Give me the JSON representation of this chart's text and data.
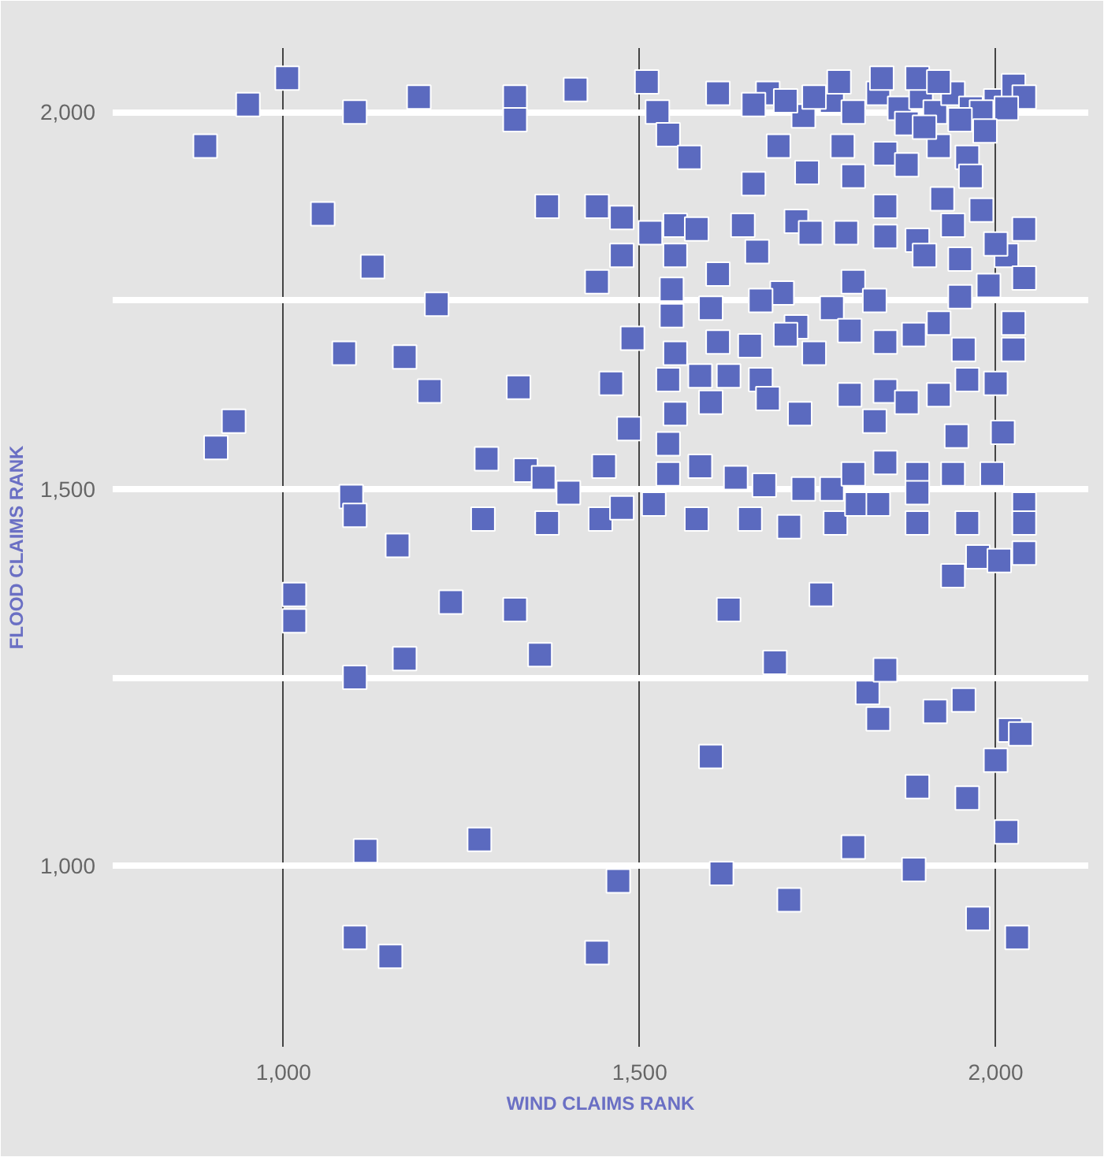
{
  "chart_data": {
    "type": "scatter",
    "xlabel": "WIND CLAIMS RANK",
    "ylabel": "FLOOD CLAIMS RANK",
    "xlim": [
      760,
      2130
    ],
    "ylim": [
      760,
      2085
    ],
    "xticks": [
      {
        "value": 1000,
        "label": "1,000"
      },
      {
        "value": 1500,
        "label": "1,500"
      },
      {
        "value": 2000,
        "label": "2,000"
      }
    ],
    "yticks": [
      {
        "value": 1000,
        "label": "1,000"
      },
      {
        "value": 1250,
        "label": null
      },
      {
        "value": 1500,
        "label": "1,500"
      },
      {
        "value": 1750,
        "label": null
      },
      {
        "value": 2000,
        "label": "2,000"
      }
    ],
    "grid": true,
    "marker": "square",
    "series": [
      {
        "color": "#5b6abf",
        "x": [
          890,
          950,
          1005,
          1100,
          1190,
          1325,
          1325,
          1410,
          1510,
          1525,
          1540,
          1610,
          1680,
          1730,
          1770,
          1800,
          1835,
          1865,
          1895,
          1915,
          1940,
          1965,
          2000,
          2025,
          2040,
          1840,
          1890,
          1660,
          1705,
          1745,
          1780,
          1875,
          1980,
          2015,
          1950,
          1920,
          1695,
          1785,
          1845,
          1920,
          1960,
          1985,
          1900,
          1875,
          1800,
          1735,
          1660,
          1570,
          1965,
          1055,
          1370,
          1440,
          1475,
          1515,
          1550,
          1580,
          1645,
          1720,
          1790,
          1845,
          1890,
          1940,
          1980,
          2015,
          2040,
          1665,
          1550,
          1475,
          1125,
          1845,
          1925,
          2000,
          1950,
          1900,
          1740,
          1440,
          1545,
          1215,
          1610,
          1700,
          1800,
          1830,
          1950,
          1990,
          2040,
          1670,
          1545,
          1600,
          1720,
          1770,
          1920,
          2025,
          1085,
          1170,
          1490,
          1550,
          1610,
          1655,
          1705,
          1745,
          1795,
          1845,
          1885,
          1955,
          2025,
          1205,
          1330,
          1460,
          1540,
          1585,
          1625,
          1670,
          1725,
          1795,
          1845,
          1875,
          1920,
          1960,
          2000,
          930,
          1485,
          1550,
          1600,
          1680,
          1830,
          1945,
          2010,
          905,
          1285,
          1095,
          1340,
          1365,
          1400,
          1450,
          1540,
          1540,
          1585,
          1635,
          1675,
          1730,
          1770,
          1800,
          1845,
          1890,
          1940,
          1995,
          2040,
          1100,
          1280,
          1370,
          1445,
          1520,
          1475,
          1580,
          1655,
          1710,
          1775,
          1805,
          1835,
          1890,
          1890,
          1960,
          2040,
          1160,
          1015,
          1015,
          1235,
          1325,
          1360,
          1625,
          1755,
          1940,
          1975,
          2040,
          2005,
          1100,
          1170,
          1690,
          1820,
          1845,
          1835,
          1915,
          1955,
          2020,
          2035,
          1600,
          2000,
          1890,
          1960,
          2015,
          1275,
          1115,
          1800,
          1470,
          1615,
          1710,
          1885,
          1975,
          1100,
          1150,
          1440,
          2030
        ],
        "values": [
          1955,
          2010,
          2045,
          2000,
          2020,
          2020,
          1990,
          2030,
          2040,
          2000,
          1970,
          2025,
          2025,
          1995,
          2015,
          2000,
          2025,
          2005,
          2020,
          2000,
          2025,
          2005,
          2015,
          2035,
          2020,
          2045,
          2045,
          2010,
          2015,
          2020,
          2040,
          1985,
          2000,
          2005,
          1990,
          2040,
          1955,
          1955,
          1945,
          1955,
          1940,
          1975,
          1980,
          1930,
          1915,
          1920,
          1905,
          1940,
          1915,
          1865,
          1875,
          1875,
          1860,
          1840,
          1850,
          1845,
          1850,
          1855,
          1840,
          1835,
          1830,
          1850,
          1870,
          1810,
          1845,
          1815,
          1810,
          1810,
          1795,
          1875,
          1885,
          1825,
          1805,
          1810,
          1840,
          1775,
          1765,
          1745,
          1785,
          1760,
          1775,
          1750,
          1755,
          1770,
          1780,
          1750,
          1730,
          1740,
          1715,
          1740,
          1720,
          1720,
          1680,
          1675,
          1700,
          1680,
          1695,
          1690,
          1705,
          1680,
          1710,
          1695,
          1705,
          1685,
          1685,
          1630,
          1635,
          1640,
          1645,
          1650,
          1650,
          1645,
          1600,
          1625,
          1630,
          1615,
          1625,
          1645,
          1640,
          1590,
          1580,
          1600,
          1615,
          1620,
          1590,
          1570,
          1575,
          1555,
          1540,
          1490,
          1525,
          1515,
          1495,
          1530,
          1560,
          1520,
          1530,
          1515,
          1505,
          1500,
          1500,
          1520,
          1535,
          1520,
          1520,
          1520,
          1480,
          1465,
          1460,
          1455,
          1460,
          1480,
          1475,
          1460,
          1460,
          1450,
          1455,
          1480,
          1480,
          1495,
          1455,
          1455,
          1455,
          1425,
          1360,
          1325,
          1350,
          1340,
          1280,
          1340,
          1360,
          1385,
          1410,
          1415,
          1405,
          1250,
          1275,
          1270,
          1230,
          1260,
          1195,
          1205,
          1220,
          1180,
          1175,
          1145,
          1140,
          1105,
          1090,
          1045,
          1035,
          1020,
          1025,
          980,
          990,
          955,
          995,
          930,
          905,
          880,
          885,
          905
        ]
      }
    ]
  }
}
